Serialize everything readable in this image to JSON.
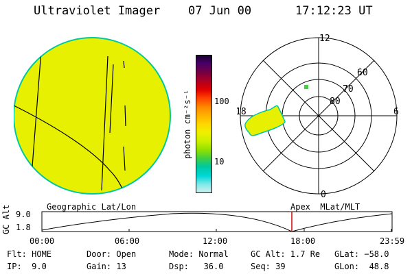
{
  "header": {
    "title": "Ultraviolet Imager",
    "date": "07 Jun 00",
    "time": "17:12:23 UT"
  },
  "colorbar": {
    "label": "photon cm⁻²s⁻¹",
    "ticks": [
      "100",
      "10"
    ],
    "colors": [
      "#1a0033",
      "#4a0066",
      "#7a0040",
      "#b00020",
      "#e00000",
      "#ff4000",
      "#ff8c00",
      "#ffb300",
      "#ffd700",
      "#f0f000",
      "#c8f000",
      "#90e000",
      "#40d040",
      "#00c8a0",
      "#00d8d8",
      "#80e8e8",
      "#d0f0f0"
    ]
  },
  "polar": {
    "labels": {
      "top": "12",
      "left": "18",
      "right": "6",
      "bottom": "0",
      "lat60": "60",
      "lat70": "70",
      "lat80": "80"
    }
  },
  "timeline": {
    "left_label": "Geographic Lat/Lon",
    "right_label": "Apex  MLat/MLT",
    "yaxis_title": "GC Alt",
    "y_top": "9.0",
    "y_bottom": "1.8",
    "x_ticks": [
      "00:00",
      "06:00",
      "12:00",
      "18:00",
      "23:59"
    ],
    "marker_color": "#d00000"
  },
  "info": {
    "flt": "Flt: HOME",
    "ip": "IP:  9.0",
    "door": "Door: Open",
    "gain": "Gain: 13",
    "mode": "Mode: Normal",
    "dsp": "Dsp:   36.0",
    "gcalt": "GC Alt: 1.7 Re",
    "seq": "Seq: 39",
    "glat": "GLat: −58.0",
    "glon": "GLon:  48.8"
  },
  "colors": {
    "disk_fill": "#e6f000",
    "disk_edge": "#00c8a0"
  }
}
